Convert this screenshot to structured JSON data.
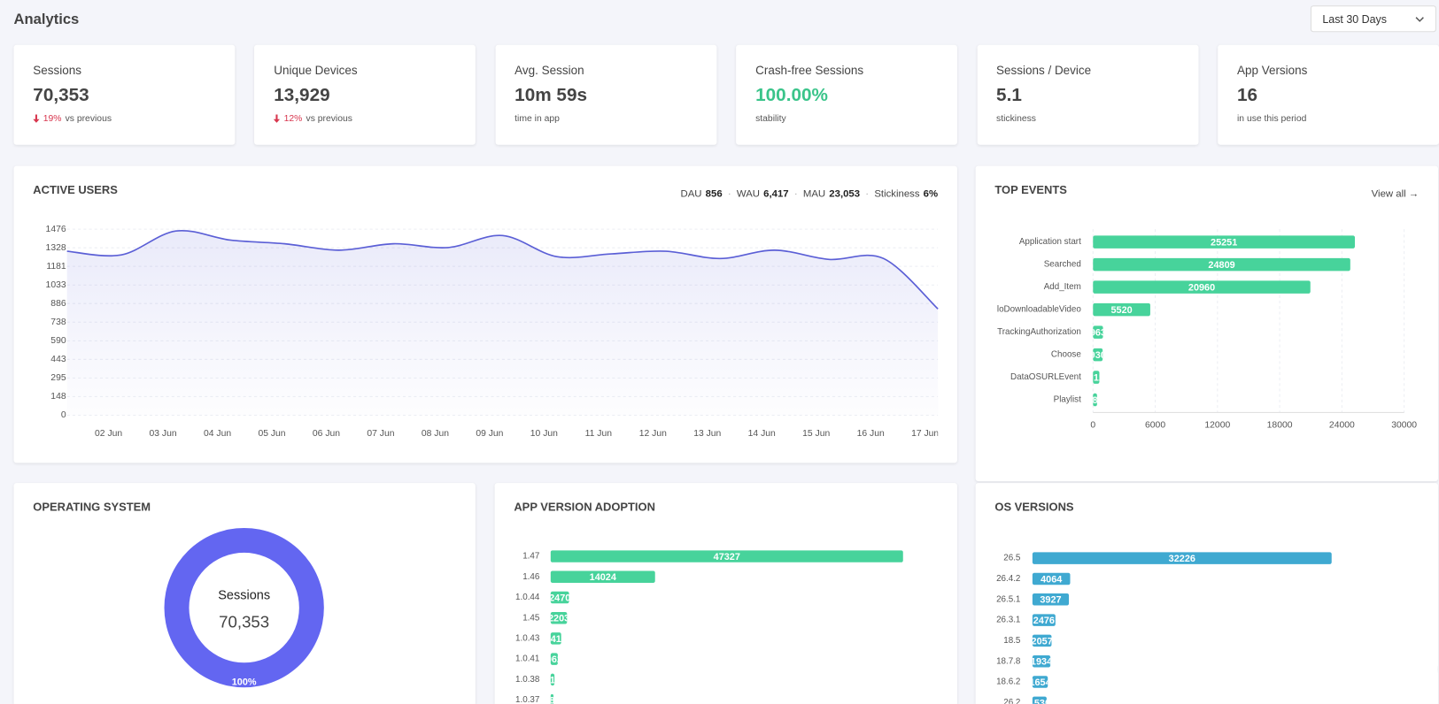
{
  "header": {
    "title": "Analytics",
    "range": "Last 30 Days"
  },
  "kpis": [
    {
      "title": "Sessions",
      "value": "70,353",
      "delta": "19%",
      "note": "vs previous"
    },
    {
      "title": "Unique Devices",
      "value": "13,929",
      "delta": "12%",
      "note": "vs previous"
    },
    {
      "title": "Avg. Session",
      "value": "10m 59s",
      "note": "time in app"
    },
    {
      "title": "Crash-free Sessions",
      "value": "100.00%",
      "note": "stability",
      "color": "#3ac48a"
    },
    {
      "title": "Sessions / Device",
      "value": "5.1",
      "note": "stickiness"
    },
    {
      "title": "App Versions",
      "value": "16",
      "note": "in use this period"
    }
  ],
  "chart_data": [
    {
      "type": "line",
      "title": "ACTIVE USERS",
      "stats": [
        {
          "label": "DAU",
          "value": "856"
        },
        {
          "label": "WAU",
          "value": "6,417"
        },
        {
          "label": "MAU",
          "value": "23,053"
        },
        {
          "label": "Stickiness",
          "value": "6%"
        }
      ],
      "categories": [
        null,
        "02 Jun",
        "03 Jun",
        "04 Jun",
        "05 Jun",
        "06 Jun",
        "07 Jun",
        "08 Jun",
        "09 Jun",
        "10 Jun",
        "11 Jun",
        "12 Jun",
        "13 Jun",
        "14 Jun",
        "15 Jun",
        "16 Jun",
        "17 Jun"
      ],
      "values": [
        1301,
        1272,
        1461,
        1389,
        1360,
        1309,
        1360,
        1330,
        1425,
        1258,
        1280,
        1301,
        1243,
        1309,
        1236,
        1243,
        843
      ],
      "color": "#5b5fd6",
      "ylim": [
        0,
        1476
      ],
      "yticks": [
        0,
        148,
        295,
        443,
        590,
        738,
        886,
        1033,
        1181,
        1328,
        1476
      ],
      "grid": true
    },
    {
      "type": "bar",
      "title": "TOP EVENTS",
      "link": "View all →",
      "orientation": "horizontal",
      "categories": [
        "Application start",
        "Searched",
        "Add_Item",
        "loDownloadableVideo",
        "TrackingAuthorization",
        "Choose",
        "DataOSURLEvent",
        "Playlist"
      ],
      "values": [
        25251,
        24809,
        20960,
        5520,
        963,
        930,
        612,
        389
      ],
      "color": "#47d39b",
      "xlim": [
        0,
        30000
      ],
      "xticks": [
        0,
        6000,
        12000,
        18000,
        24000,
        30000
      ],
      "grid": true
    },
    {
      "type": "pie",
      "title": "OPERATING SYSTEM",
      "center_title": "Sessions",
      "center_value": "70,353",
      "values": [
        100
      ],
      "value_labels": [
        "100%"
      ],
      "color": "#6366f1"
    },
    {
      "type": "bar",
      "title": "APP VERSION ADOPTION",
      "orientation": "horizontal",
      "categories": [
        "1.47",
        "1.46",
        "1.0.44",
        "1.45",
        "1.0.43",
        "1.0.41",
        "1.0.38",
        "1.0.37"
      ],
      "values": [
        47327,
        14024,
        2470,
        2203,
        1412,
        962,
        512,
        384
      ],
      "color": "#47d39b"
    },
    {
      "type": "bar",
      "title": "OS VERSIONS",
      "orientation": "horizontal",
      "categories": [
        "26.5",
        "26.4.2",
        "26.5.1",
        "26.3.1",
        "18.5",
        "18.7.8",
        "18.6.2",
        "26.2"
      ],
      "values": [
        32226,
        4064,
        3927,
        2476,
        2057,
        1934,
        1654,
        1530
      ],
      "color": "#3fa9d1"
    }
  ]
}
